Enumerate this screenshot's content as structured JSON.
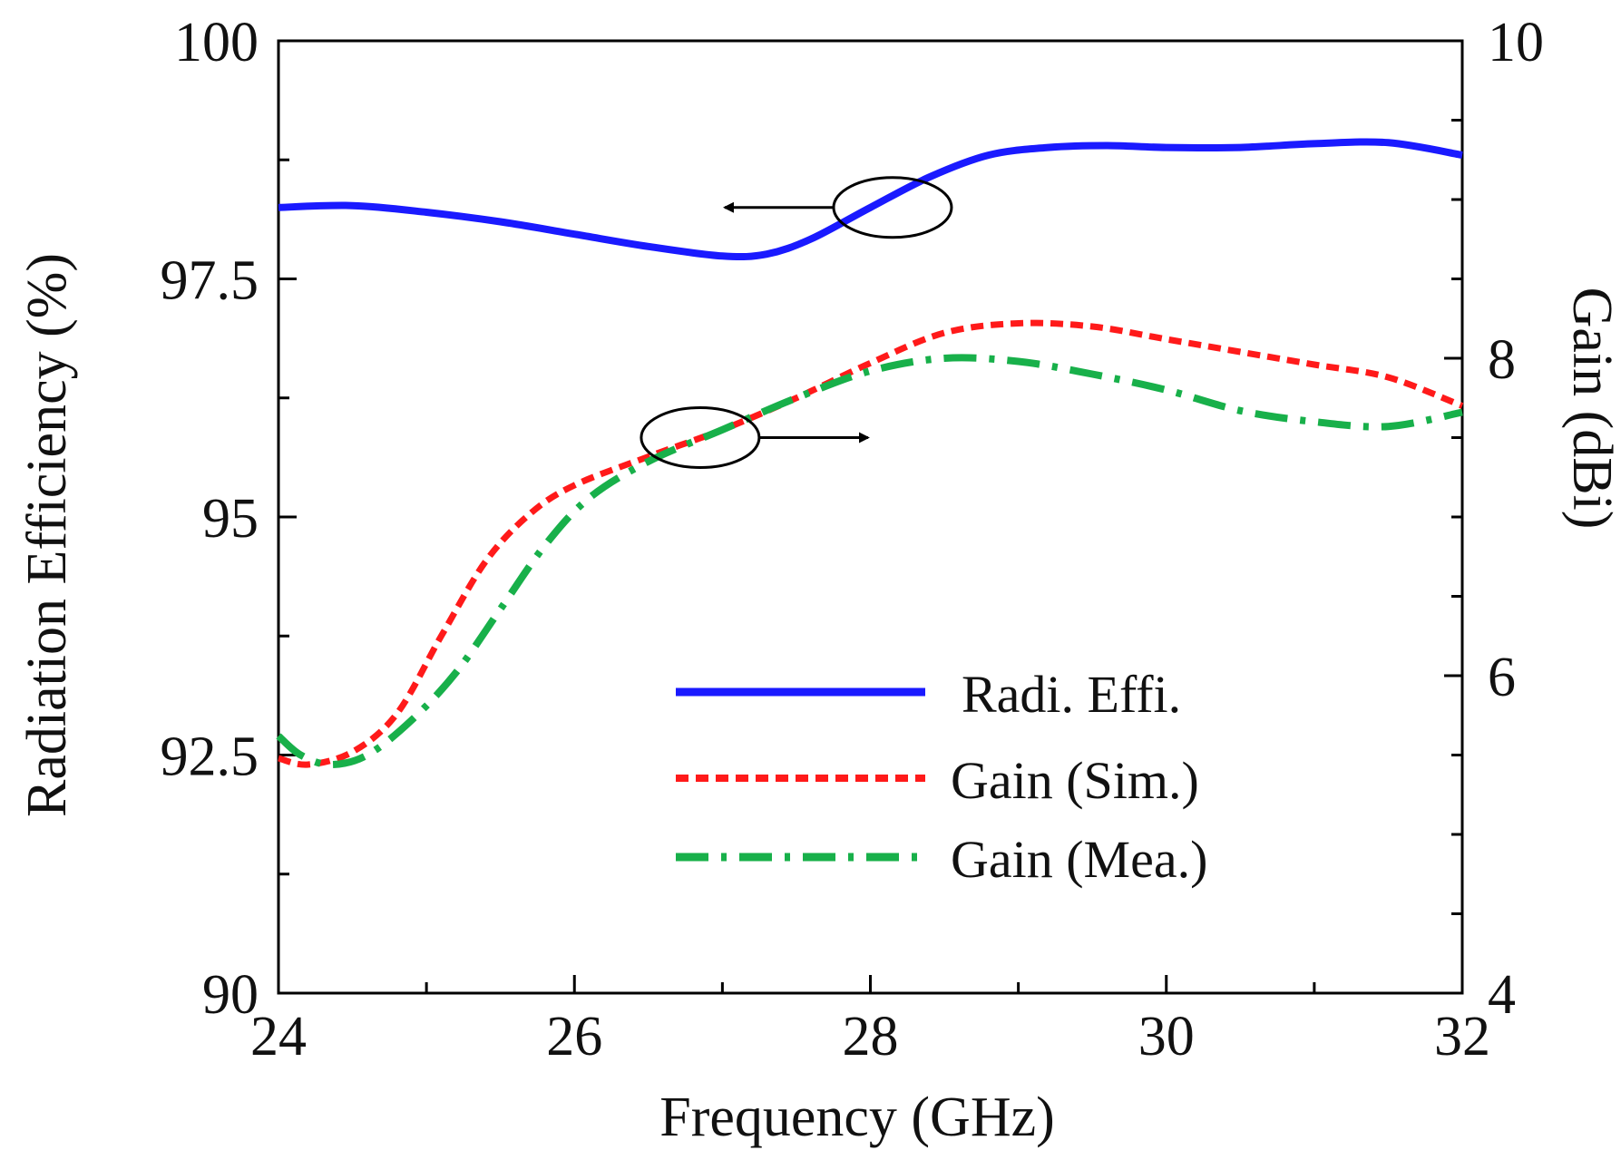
{
  "chart_data": {
    "type": "line",
    "x_axis": {
      "label": "Frequency (GHz)",
      "range": [
        24,
        32
      ],
      "ticks": [
        "24",
        "26",
        "28",
        "30",
        "32"
      ]
    },
    "y_left": {
      "label": "Radiation Efficiency (%)",
      "range": [
        90,
        100
      ],
      "ticks": [
        "90",
        "92.5",
        "95",
        "97.5",
        "100"
      ]
    },
    "y_right": {
      "label": "Gain (dBi)",
      "range": [
        4,
        10
      ],
      "ticks": [
        "4",
        "6",
        "8",
        "10"
      ]
    },
    "grid": false,
    "legend_position": "lower-right",
    "series": [
      {
        "name": "Radi. Effi.",
        "axis": "left",
        "color": "#1a1aff",
        "dash": "solid",
        "x": [
          24.0,
          24.5,
          25.0,
          25.5,
          26.0,
          26.5,
          27.0,
          27.3,
          27.6,
          28.0,
          28.4,
          28.8,
          29.2,
          29.6,
          30.0,
          30.5,
          31.0,
          31.5,
          32.0
        ],
        "y": [
          98.25,
          98.27,
          98.2,
          98.1,
          97.97,
          97.84,
          97.74,
          97.76,
          97.92,
          98.25,
          98.57,
          98.8,
          98.88,
          98.9,
          98.88,
          98.88,
          98.92,
          98.93,
          98.8
        ]
      },
      {
        "name": "Gain (Sim.)",
        "axis": "right",
        "color": "#ff1a1a",
        "dash": "dotted",
        "x": [
          24.0,
          24.2,
          24.5,
          24.8,
          25.1,
          25.4,
          25.7,
          26.0,
          26.5,
          27.0,
          27.5,
          28.0,
          28.5,
          29.0,
          29.5,
          30.0,
          30.5,
          31.0,
          31.5,
          32.0
        ],
        "y": [
          5.48,
          5.44,
          5.52,
          5.76,
          6.25,
          6.72,
          7.02,
          7.2,
          7.38,
          7.55,
          7.75,
          7.97,
          8.16,
          8.22,
          8.2,
          8.12,
          8.04,
          7.96,
          7.88,
          7.7
        ]
      },
      {
        "name": "Gain (Mea.)",
        "axis": "right",
        "color": "#18b04a",
        "dash": "dash-dot",
        "x": [
          24.0,
          24.15,
          24.35,
          24.6,
          24.9,
          25.2,
          25.5,
          25.8,
          26.1,
          26.5,
          27.0,
          27.5,
          28.0,
          28.5,
          29.0,
          29.5,
          30.0,
          30.5,
          31.0,
          31.5,
          32.0
        ],
        "y": [
          5.62,
          5.5,
          5.44,
          5.5,
          5.72,
          6.02,
          6.42,
          6.82,
          7.12,
          7.35,
          7.55,
          7.75,
          7.92,
          8.0,
          7.98,
          7.9,
          7.8,
          7.67,
          7.6,
          7.57,
          7.66
        ]
      }
    ],
    "annotations": [
      {
        "target": "Radi. Effi.",
        "arrow": "left",
        "at_x": 28.15,
        "at_value": 98.25
      },
      {
        "target": "Gain (Sim.) / Gain (Mea.)",
        "arrow": "right",
        "at_x": 26.85,
        "at_value": 7.5
      }
    ]
  }
}
